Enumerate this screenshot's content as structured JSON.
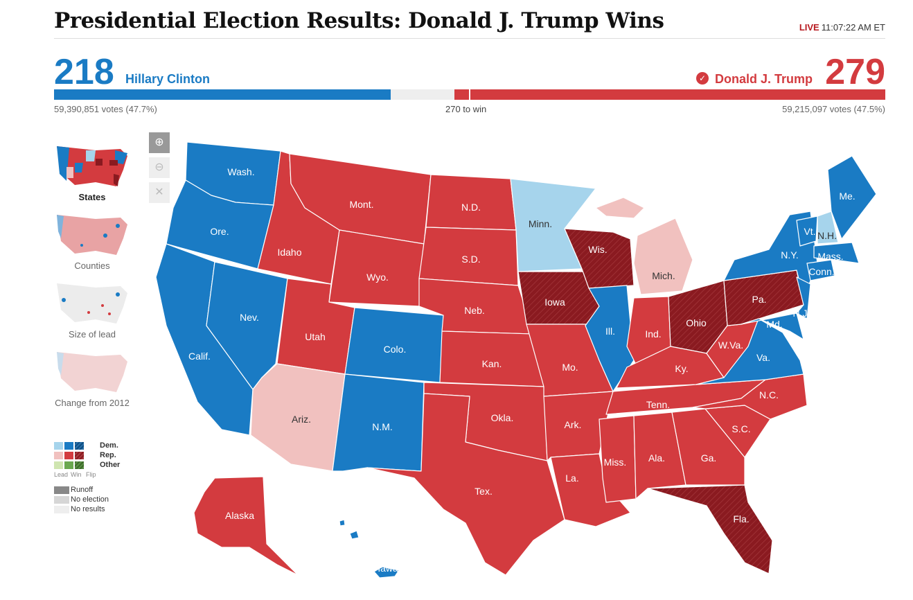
{
  "header": {
    "title": "Presidential Election Results: Donald J. Trump Wins",
    "live_label": "LIVE",
    "time": "11:07:22 AM ET"
  },
  "candidates": {
    "dem": {
      "electoral": "218",
      "name": "Hillary Clinton",
      "votes": "59,390,851 votes (47.7%)",
      "color": "#1a7bc4"
    },
    "rep": {
      "electoral": "279",
      "name": "Donald J. Trump",
      "votes": "59,215,097 votes (47.5%)",
      "color": "#d33b3f"
    }
  },
  "to_win": "270 to win",
  "electoral_bar": {
    "dem": 218,
    "rep": 279,
    "total": 538
  },
  "zoom": {
    "in": "⊕",
    "out": "⊖",
    "reset": "✕"
  },
  "views": [
    {
      "label": "States"
    },
    {
      "label": "Counties"
    },
    {
      "label": "Size of lead"
    },
    {
      "label": "Change from 2012"
    }
  ],
  "legend": {
    "dem": "Dem.",
    "rep": "Rep.",
    "other": "Other",
    "lead": "Lead",
    "win": "Win",
    "flip": "Flip",
    "runoff": "Runoff",
    "no_election": "No election",
    "no_results": "No results",
    "colors": {
      "dem_lead": "#a6d4ec",
      "dem_win": "#1a7bc4",
      "dem_flip": "#0e4e82",
      "rep_lead": "#f1c1bf",
      "rep_win": "#d33b3f",
      "rep_flip": "#8a1a20",
      "other_lead": "#cfe5b0",
      "other_win": "#6aa84f",
      "other_flip": "#3d6b2a",
      "runoff": "#888888",
      "no_election": "#d6d6d6",
      "no_results": "#eeeeee"
    }
  },
  "states": [
    {
      "name": "Wash.",
      "status": "dem_win"
    },
    {
      "name": "Ore.",
      "status": "dem_win"
    },
    {
      "name": "Calif.",
      "status": "dem_win"
    },
    {
      "name": "Nev.",
      "status": "dem_win"
    },
    {
      "name": "Idaho",
      "status": "rep_win"
    },
    {
      "name": "Mont.",
      "status": "rep_win"
    },
    {
      "name": "Wyo.",
      "status": "rep_win"
    },
    {
      "name": "Utah",
      "status": "rep_win"
    },
    {
      "name": "Colo.",
      "status": "dem_win"
    },
    {
      "name": "Ariz.",
      "status": "rep_lead"
    },
    {
      "name": "N.M.",
      "status": "dem_win"
    },
    {
      "name": "N.D.",
      "status": "rep_win"
    },
    {
      "name": "S.D.",
      "status": "rep_win"
    },
    {
      "name": "Neb.",
      "status": "rep_win"
    },
    {
      "name": "Kan.",
      "status": "rep_win"
    },
    {
      "name": "Okla.",
      "status": "rep_win"
    },
    {
      "name": "Tex.",
      "status": "rep_win"
    },
    {
      "name": "Minn.",
      "status": "dem_lead"
    },
    {
      "name": "Iowa",
      "status": "rep_flip"
    },
    {
      "name": "Mo.",
      "status": "rep_win"
    },
    {
      "name": "Ark.",
      "status": "rep_win"
    },
    {
      "name": "La.",
      "status": "rep_win"
    },
    {
      "name": "Wis.",
      "status": "rep_flip"
    },
    {
      "name": "Ill.",
      "status": "dem_win"
    },
    {
      "name": "Mich.",
      "status": "rep_lead"
    },
    {
      "name": "Ind.",
      "status": "rep_win"
    },
    {
      "name": "Ohio",
      "status": "rep_flip"
    },
    {
      "name": "Ky.",
      "status": "rep_win"
    },
    {
      "name": "Tenn.",
      "status": "rep_win"
    },
    {
      "name": "Miss.",
      "status": "rep_win"
    },
    {
      "name": "Ala.",
      "status": "rep_win"
    },
    {
      "name": "Ga.",
      "status": "rep_win"
    },
    {
      "name": "Fla.",
      "status": "rep_flip"
    },
    {
      "name": "S.C.",
      "status": "rep_win"
    },
    {
      "name": "N.C.",
      "status": "rep_win"
    },
    {
      "name": "Va.",
      "status": "dem_win"
    },
    {
      "name": "W.Va.",
      "status": "rep_win"
    },
    {
      "name": "Pa.",
      "status": "rep_flip"
    },
    {
      "name": "N.Y.",
      "status": "dem_win"
    },
    {
      "name": "Md.",
      "status": "dem_win"
    },
    {
      "name": "N.J.",
      "status": "dem_win"
    },
    {
      "name": "Conn.",
      "status": "dem_win"
    },
    {
      "name": "Mass.",
      "status": "dem_win"
    },
    {
      "name": "Vt.",
      "status": "dem_win"
    },
    {
      "name": "N.H.",
      "status": "dem_lead"
    },
    {
      "name": "Me.",
      "status": "dem_win"
    },
    {
      "name": "Alaska",
      "status": "rep_win"
    },
    {
      "name": "Hawaii",
      "status": "dem_win"
    }
  ]
}
